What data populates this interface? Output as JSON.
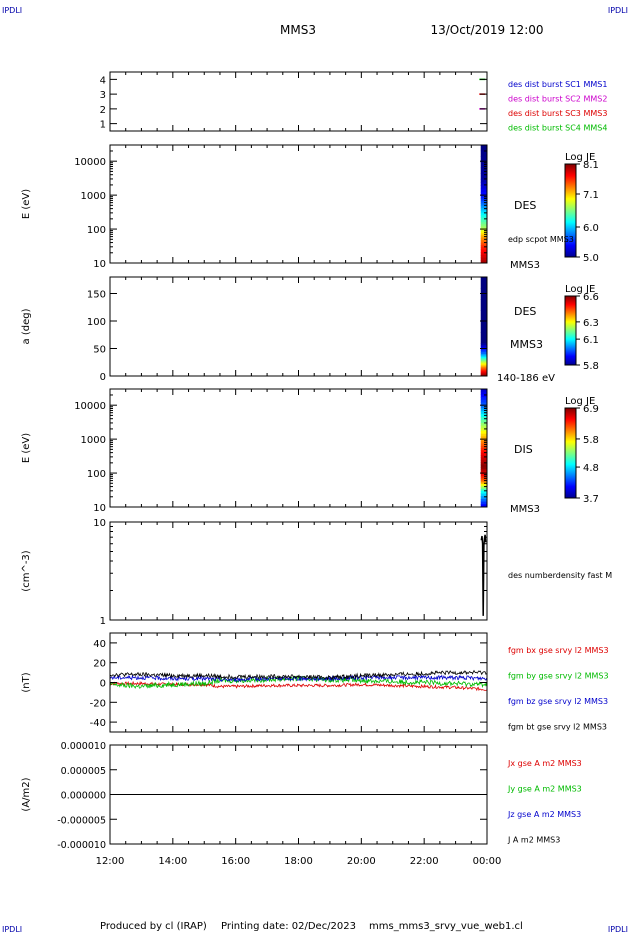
{
  "header": {
    "corner_left_top": "IPDLI",
    "corner_right_top": "IPDLI",
    "corner_left_bottom": "IPDLI",
    "corner_right_bottom": "IPDLI",
    "spacecraft": "MMS3",
    "datetime": "13/Oct/2019 12:00"
  },
  "footer": {
    "produced_by": "Produced by cl (IRAP)",
    "printing_date": "Printing date: 02/Dec/2023",
    "filename": "mms_mms3_srvy_vue_web1.cl"
  },
  "time_axis": {
    "ticks": [
      "12:00",
      "14:00",
      "16:00",
      "18:00",
      "20:00",
      "22:00",
      "00:00"
    ],
    "range_hours": [
      12,
      24
    ]
  },
  "chart_data": [
    {
      "id": "burst-panel",
      "type": "scatter",
      "ylabel": "",
      "ylim": [
        0.5,
        4.5
      ],
      "ticks": [
        "1",
        "2",
        "3",
        "4"
      ],
      "tick_values": [
        1,
        2,
        3,
        4
      ],
      "legend": [
        {
          "label": "des dist burst SC1 MMS1",
          "color": "#0000cc"
        },
        {
          "label": "des dist burst SC2 MMS2",
          "color": "#cc00cc"
        },
        {
          "label": "des dist burst SC3 MMS3",
          "color": "#dd0000"
        },
        {
          "label": "des dist burst SC4 MMS4",
          "color": "#00bb00"
        }
      ],
      "marks": [
        {
          "x": 23.85,
          "y": 4,
          "color": "#00bb00"
        },
        {
          "x": 23.85,
          "y": 3,
          "color": "#dd0000"
        },
        {
          "x": 23.85,
          "y": 2,
          "color": "#cc00cc"
        }
      ]
    },
    {
      "id": "des-energy-panel",
      "type": "heatmap",
      "ylabel": "E (eV)",
      "scale": "log",
      "ylim": [
        10,
        30000
      ],
      "ticks": [
        "10",
        "100",
        "1000",
        "10000"
      ],
      "tick_values": [
        10,
        100,
        1000,
        10000
      ],
      "label_main": "DES",
      "label_sub": "edp scpot MMS3",
      "label_bottom": "MMS3",
      "colorbar": {
        "title": "Log JE",
        "ticks": [
          "8.1",
          "7.1",
          "6.0",
          "5.0"
        ],
        "tick_values": [
          8.1,
          7.1,
          6.0,
          5.0
        ],
        "range": [
          5.0,
          8.1
        ]
      },
      "data_interval_hours": [
        23.8,
        24.0
      ],
      "profile": [
        {
          "y": 30000,
          "v": 5.0
        },
        {
          "y": 3000,
          "v": 5.1
        },
        {
          "y": 800,
          "v": 5.5
        },
        {
          "y": 300,
          "v": 6.1
        },
        {
          "y": 120,
          "v": 6.6
        },
        {
          "y": 60,
          "v": 7.2
        },
        {
          "y": 30,
          "v": 7.6
        },
        {
          "y": 10,
          "v": 8.0
        }
      ]
    },
    {
      "id": "des-pitch-panel",
      "type": "heatmap",
      "ylabel": "a (deg)",
      "scale": "linear",
      "ylim": [
        0,
        180
      ],
      "ticks": [
        "0",
        "50",
        "100",
        "150"
      ],
      "tick_values": [
        0,
        50,
        100,
        150
      ],
      "label_main": "DES",
      "label_sub": "MMS3",
      "label_bottom": "140-186 eV",
      "colorbar": {
        "title": "Log JE",
        "ticks": [
          "6.6",
          "6.3",
          "6.1",
          "5.8"
        ],
        "tick_values": [
          6.6,
          6.3,
          6.1,
          5.8
        ],
        "range": [
          5.8,
          6.6
        ]
      },
      "data_interval_hours": [
        23.8,
        24.0
      ],
      "profile": [
        {
          "y": 180,
          "v": 5.8
        },
        {
          "y": 60,
          "v": 5.8
        },
        {
          "y": 40,
          "v": 6.0
        },
        {
          "y": 25,
          "v": 6.25
        },
        {
          "y": 12,
          "v": 6.45
        },
        {
          "y": 0,
          "v": 6.6
        }
      ]
    },
    {
      "id": "dis-energy-panel",
      "type": "heatmap",
      "ylabel": "E (eV)",
      "scale": "log",
      "ylim": [
        10,
        30000
      ],
      "ticks": [
        "10",
        "100",
        "1000",
        "10000"
      ],
      "tick_values": [
        10,
        100,
        1000,
        10000
      ],
      "label_main": "DIS",
      "label_sub": "",
      "label_bottom": "MMS3",
      "colorbar": {
        "title": "Log JE",
        "ticks": [
          "6.9",
          "5.8",
          "4.8",
          "3.7"
        ],
        "tick_values": [
          6.9,
          5.8,
          4.8,
          3.7
        ],
        "range": [
          3.7,
          6.9
        ]
      },
      "data_interval_hours": [
        23.8,
        24.0
      ],
      "profile": [
        {
          "y": 30000,
          "v": 3.9
        },
        {
          "y": 10000,
          "v": 4.4
        },
        {
          "y": 3000,
          "v": 5.3
        },
        {
          "y": 1000,
          "v": 6.0
        },
        {
          "y": 400,
          "v": 6.5
        },
        {
          "y": 150,
          "v": 6.9
        },
        {
          "y": 60,
          "v": 6.2
        },
        {
          "y": 30,
          "v": 5.0
        },
        {
          "y": 10,
          "v": 4.0
        }
      ]
    },
    {
      "id": "density-panel",
      "type": "line",
      "ylabel": "(cm^-3)",
      "scale": "log",
      "ylim": [
        1,
        10
      ],
      "ticks": [
        "1",
        "10"
      ],
      "tick_values": [
        1,
        10
      ],
      "legend": [
        {
          "label": "des numberdensity fast M",
          "color": "#000000"
        }
      ],
      "series": [
        {
          "name": "des numberdensity fast M",
          "color": "#000000",
          "x": [
            23.82,
            23.84,
            23.86,
            23.88,
            23.9,
            23.92,
            23.94,
            23.96
          ],
          "y": [
            6.5,
            7.2,
            6.0,
            1.1,
            5.8,
            6.8,
            7.4,
            6.2
          ]
        }
      ]
    },
    {
      "id": "magnetic-field-panel",
      "type": "line",
      "ylabel": "(nT)",
      "ylim": [
        -50,
        50
      ],
      "ticks": [
        "-40",
        "-20",
        "0",
        "20",
        "40"
      ],
      "tick_values": [
        -40,
        -20,
        0,
        20,
        40
      ],
      "legend": [
        {
          "label": "fgm bx gse srvy l2 MMS3",
          "color": "#dd0000"
        },
        {
          "label": "fgm by gse srvy l2 MMS3",
          "color": "#00bb00"
        },
        {
          "label": "fgm bz gse srvy l2 MMS3",
          "color": "#0000cc"
        },
        {
          "label": "fgm bt gse srvy l2 MMS3",
          "color": "#000000"
        }
      ],
      "x": [
        12,
        13,
        14,
        15,
        15.5,
        16,
        17,
        18,
        19,
        20,
        21,
        22,
        23,
        24
      ],
      "series": [
        {
          "name": "fgm bx gse srvy l2 MMS3",
          "color": "#dd0000",
          "noise": 1.5,
          "values": [
            -1,
            -1,
            -2,
            -2,
            -4,
            -4,
            -3,
            -3,
            -3,
            -2,
            -3,
            -4,
            -5,
            -7
          ]
        },
        {
          "name": "fgm by gse srvy l2 MMS3",
          "color": "#00bb00",
          "noise": 2.5,
          "values": [
            -2,
            -4,
            -2,
            -1,
            2,
            2,
            3,
            4,
            3,
            2,
            1,
            0,
            -1,
            -2
          ]
        },
        {
          "name": "fgm bz gse srvy l2 MMS3",
          "color": "#0000cc",
          "noise": 2,
          "values": [
            5,
            5,
            4,
            4,
            3,
            3,
            4,
            4,
            4,
            5,
            5,
            5,
            5,
            4
          ]
        },
        {
          "name": "fgm bt gse srvy l2 MMS3",
          "color": "#000000",
          "noise": 2,
          "values": [
            8,
            8,
            7,
            7,
            6,
            6,
            6,
            6,
            5,
            7,
            8,
            9,
            10,
            10
          ]
        }
      ]
    },
    {
      "id": "current-density-panel",
      "type": "line",
      "ylabel": "(A/m2)",
      "ylim": [
        -1e-05,
        1e-05
      ],
      "ticks": [
        "-0.000010",
        "-0.000005",
        "0.000000",
        "0.000005",
        "0.000010"
      ],
      "tick_values": [
        -1e-05,
        -5e-06,
        0,
        5e-06,
        1e-05
      ],
      "legend": [
        {
          "label": "Jx gse A m2 MMS3",
          "color": "#dd0000"
        },
        {
          "label": "Jy gse A m2 MMS3",
          "color": "#00bb00"
        },
        {
          "label": "Jz gse A m2 MMS3",
          "color": "#0000cc"
        },
        {
          "label": "J A m2 MMS3",
          "color": "#000000"
        }
      ],
      "series": [
        {
          "name": "J A m2 MMS3",
          "color": "#000000",
          "x": [
            12,
            24
          ],
          "y": [
            0,
            0
          ]
        }
      ]
    }
  ]
}
